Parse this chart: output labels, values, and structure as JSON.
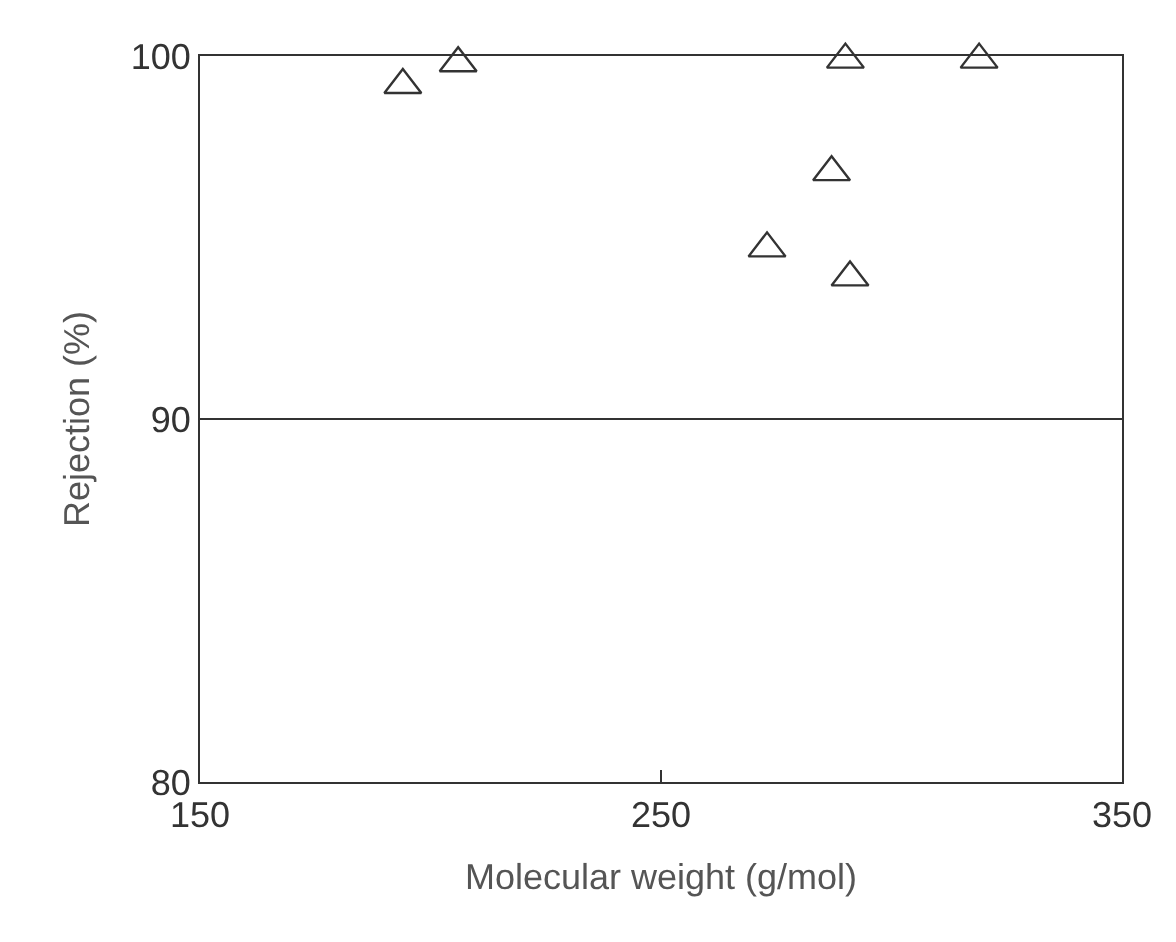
{
  "chart_data": {
    "type": "scatter",
    "xlabel": "Molecular weight (g/mol)",
    "ylabel": "Rejection (%)",
    "xlim": [
      150,
      350
    ],
    "xticks": [
      150,
      250,
      350
    ],
    "ylim": [
      80,
      100
    ],
    "yticks": [
      80,
      90,
      100
    ],
    "grid": "y",
    "marker": "triangle",
    "legend": false,
    "series": [
      {
        "color": "#333333",
        "x": [
          194,
          206,
          290,
          319,
          287,
          273,
          291
        ],
        "values": [
          99.2,
          99.8,
          99.9,
          99.9,
          96.8,
          94.7,
          93.9
        ]
      }
    ]
  }
}
